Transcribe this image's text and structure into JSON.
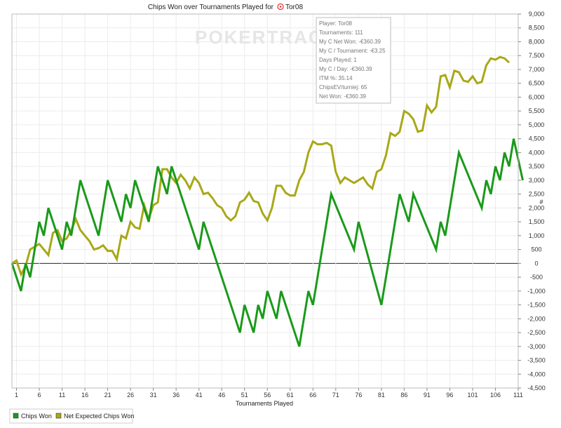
{
  "chart_data": {
    "type": "line",
    "title": "Chips Won over Tournaments Played for",
    "player_name": "Tor08",
    "watermark": "POKERTRACKER",
    "xlabel": "Tournaments Played",
    "ylabel": "#",
    "xlim": [
      0,
      111
    ],
    "ylim": [
      -4500,
      9000
    ],
    "x_ticks": [
      1,
      6,
      11,
      16,
      21,
      26,
      31,
      36,
      41,
      46,
      51,
      56,
      61,
      66,
      71,
      76,
      81,
      86,
      91,
      96,
      101,
      106,
      111
    ],
    "y_ticks": [
      -4500,
      -4000,
      -3500,
      -3000,
      -2500,
      -2000,
      -1500,
      -1000,
      -500,
      0,
      500,
      1000,
      1500,
      2000,
      2500,
      3000,
      3500,
      4000,
      4500,
      5000,
      5500,
      6000,
      6500,
      7000,
      7500,
      8000,
      8500,
      9000
    ],
    "y_tick_labels": [
      "-4,500",
      "-4,000",
      "-3,500",
      "-3,000",
      "-2,500",
      "-2,000",
      "-1,500",
      "-1,000",
      "-500",
      "0",
      "500",
      "1,000",
      "1,500",
      "2,000",
      "2,500",
      "3,000",
      "3,500",
      "4,000",
      "4,500",
      "5,000",
      "5,500",
      "6,000",
      "6,500",
      "7,000",
      "7,500",
      "8,000",
      "8,500",
      "9,000"
    ],
    "grid": true,
    "legend_position": "bottom-left",
    "series": [
      {
        "name": "Chips Won",
        "color": "#1a9a1a",
        "points": [
          [
            0,
            0
          ],
          [
            2,
            -1000
          ],
          [
            3,
            0
          ],
          [
            4,
            -500
          ],
          [
            6,
            1500
          ],
          [
            7,
            1000
          ],
          [
            8,
            2000
          ],
          [
            11,
            500
          ],
          [
            12,
            1500
          ],
          [
            13,
            1000
          ],
          [
            15,
            3000
          ],
          [
            19,
            1000
          ],
          [
            21,
            3000
          ],
          [
            24,
            1500
          ],
          [
            25,
            2500
          ],
          [
            26,
            2000
          ],
          [
            27,
            3000
          ],
          [
            30,
            1500
          ],
          [
            32,
            3500
          ],
          [
            34,
            2500
          ],
          [
            35,
            3500
          ],
          [
            41,
            500
          ],
          [
            42,
            1500
          ],
          [
            50,
            -2500
          ],
          [
            51,
            -1500
          ],
          [
            53,
            -2500
          ],
          [
            54,
            -1500
          ],
          [
            55,
            -2000
          ],
          [
            56,
            -1000
          ],
          [
            58,
            -2000
          ],
          [
            59,
            -1000
          ],
          [
            63,
            -3000
          ],
          [
            65,
            -1000
          ],
          [
            66,
            -1500
          ],
          [
            70,
            2500
          ],
          [
            75,
            500
          ],
          [
            76,
            1500
          ],
          [
            81,
            -1500
          ],
          [
            85,
            2500
          ],
          [
            87,
            1500
          ],
          [
            88,
            2500
          ],
          [
            93,
            500
          ],
          [
            94,
            1500
          ],
          [
            95,
            1000
          ],
          [
            98,
            4000
          ],
          [
            103,
            2000
          ],
          [
            104,
            3000
          ],
          [
            105,
            2500
          ],
          [
            106,
            3500
          ],
          [
            107,
            3000
          ],
          [
            108,
            4000
          ],
          [
            109,
            3500
          ],
          [
            110,
            4500
          ],
          [
            112,
            3000
          ]
        ]
      },
      {
        "name": "Net Expected Chips Won",
        "color": "#a8a818",
        "points": [
          [
            0,
            0
          ],
          [
            1,
            100
          ],
          [
            2,
            -400
          ],
          [
            3,
            -100
          ],
          [
            4,
            500
          ],
          [
            5,
            600
          ],
          [
            6,
            700
          ],
          [
            7,
            500
          ],
          [
            8,
            300
          ],
          [
            9,
            1100
          ],
          [
            10,
            1200
          ],
          [
            11,
            800
          ],
          [
            12,
            900
          ],
          [
            13,
            1200
          ],
          [
            14,
            1600
          ],
          [
            15,
            1200
          ],
          [
            16,
            1000
          ],
          [
            17,
            800
          ],
          [
            18,
            500
          ],
          [
            19,
            550
          ],
          [
            20,
            650
          ],
          [
            21,
            450
          ],
          [
            22,
            450
          ],
          [
            23,
            150
          ],
          [
            24,
            1000
          ],
          [
            25,
            900
          ],
          [
            26,
            1500
          ],
          [
            27,
            1300
          ],
          [
            28,
            1250
          ],
          [
            29,
            2100
          ],
          [
            30,
            1600
          ],
          [
            31,
            2100
          ],
          [
            32,
            2200
          ],
          [
            33,
            3400
          ],
          [
            34,
            3400
          ],
          [
            35,
            3100
          ],
          [
            36,
            2900
          ],
          [
            37,
            3200
          ],
          [
            38,
            3000
          ],
          [
            39,
            2700
          ],
          [
            40,
            3100
          ],
          [
            41,
            2900
          ],
          [
            42,
            2500
          ],
          [
            43,
            2550
          ],
          [
            44,
            2350
          ],
          [
            45,
            2100
          ],
          [
            46,
            2000
          ],
          [
            47,
            1700
          ],
          [
            48,
            1550
          ],
          [
            49,
            1700
          ],
          [
            50,
            2200
          ],
          [
            51,
            2300
          ],
          [
            52,
            2550
          ],
          [
            53,
            2250
          ],
          [
            54,
            2200
          ],
          [
            55,
            1800
          ],
          [
            56,
            1550
          ],
          [
            57,
            2000
          ],
          [
            58,
            2800
          ],
          [
            59,
            2800
          ],
          [
            60,
            2550
          ],
          [
            61,
            2450
          ],
          [
            62,
            2450
          ],
          [
            63,
            3000
          ],
          [
            64,
            3300
          ],
          [
            65,
            4000
          ],
          [
            66,
            4400
          ],
          [
            67,
            4300
          ],
          [
            68,
            4300
          ],
          [
            69,
            4350
          ],
          [
            70,
            4250
          ],
          [
            71,
            3300
          ],
          [
            72,
            2900
          ],
          [
            73,
            3100
          ],
          [
            74,
            3000
          ],
          [
            75,
            2900
          ],
          [
            76,
            3000
          ],
          [
            77,
            3100
          ],
          [
            78,
            2850
          ],
          [
            79,
            2700
          ],
          [
            80,
            3300
          ],
          [
            81,
            3400
          ],
          [
            82,
            3900
          ],
          [
            83,
            4700
          ],
          [
            84,
            4600
          ],
          [
            85,
            4750
          ],
          [
            86,
            5500
          ],
          [
            87,
            5400
          ],
          [
            88,
            5200
          ],
          [
            89,
            4750
          ],
          [
            90,
            4800
          ],
          [
            91,
            5700
          ],
          [
            92,
            5450
          ],
          [
            93,
            5650
          ],
          [
            94,
            6750
          ],
          [
            95,
            6800
          ],
          [
            96,
            6350
          ],
          [
            97,
            6950
          ],
          [
            98,
            6900
          ],
          [
            99,
            6600
          ],
          [
            100,
            6550
          ],
          [
            101,
            6750
          ],
          [
            102,
            6500
          ],
          [
            103,
            6550
          ],
          [
            104,
            7150
          ],
          [
            105,
            7400
          ],
          [
            106,
            7350
          ],
          [
            107,
            7450
          ],
          [
            108,
            7400
          ],
          [
            109,
            7250
          ]
        ]
      }
    ],
    "tooltip": [
      "Player: Tor08",
      "Tournaments: 111",
      "My C Net Won: -€360.39",
      "My C / Tournament: -€3.25",
      "Days Played: 1",
      "My C / Day: -€360.39",
      "ITM %: 35.14",
      "ChipsEV/turniej: 65",
      "Net Won: -€360.39"
    ]
  }
}
